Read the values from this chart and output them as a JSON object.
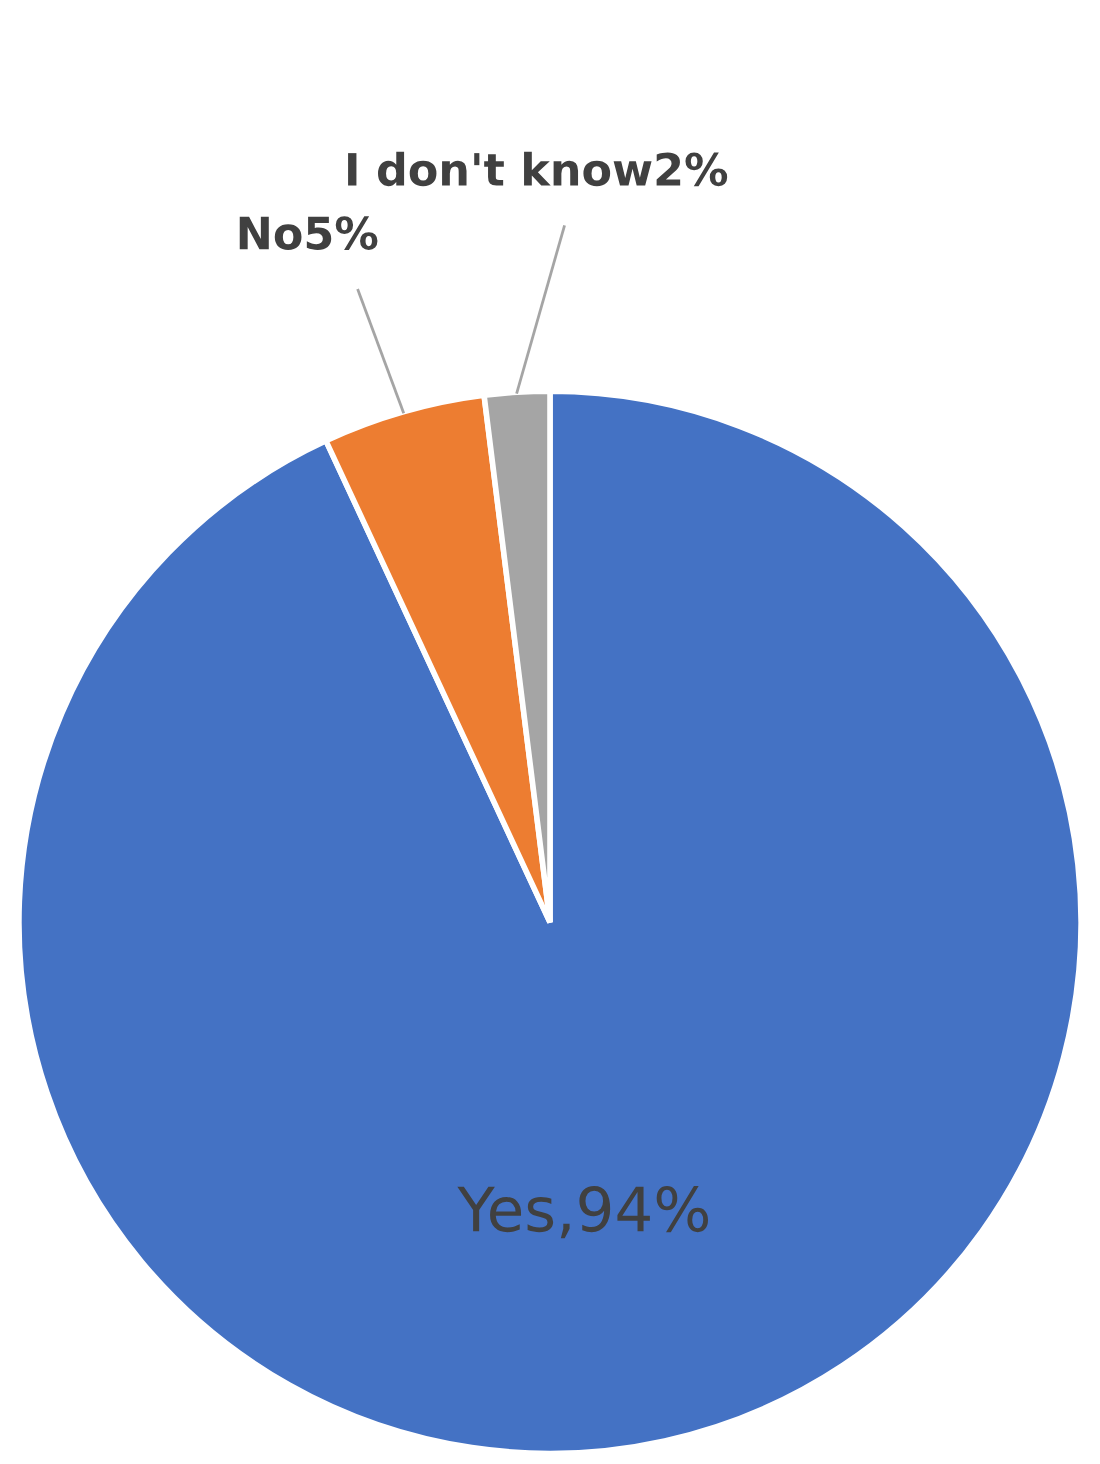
{
  "chart_data": {
    "type": "pie",
    "categories": [
      "Yes",
      "No",
      "I don't know"
    ],
    "values": [
      94,
      5,
      2
    ],
    "value_labels": [
      "94%",
      "5%",
      "2%"
    ],
    "colors": [
      "#4472c4",
      "#ed7d31",
      "#a5a5a5"
    ]
  }
}
